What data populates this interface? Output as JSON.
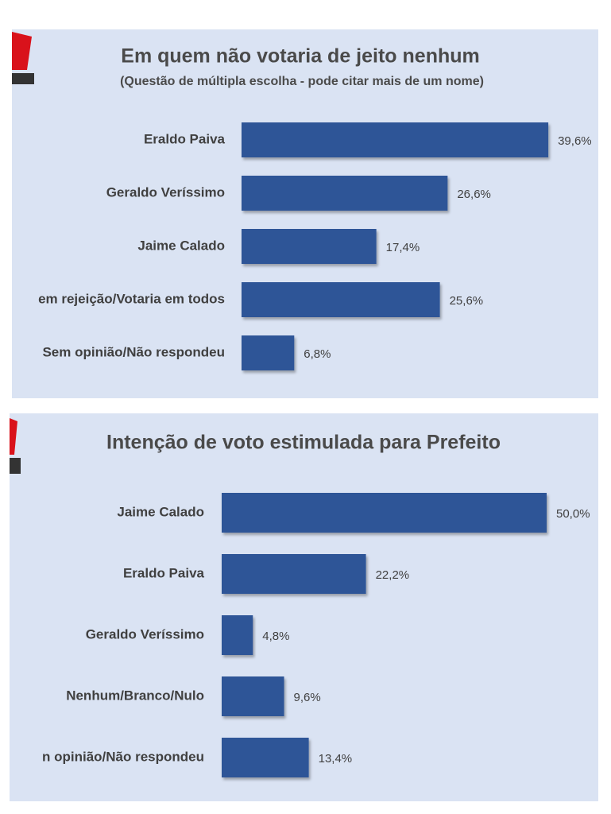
{
  "chart_data": [
    {
      "type": "bar",
      "orientation": "horizontal",
      "title": "Em quem não votaria de jeito nenhum",
      "subtitle": "(Questão de múltipla escolha - pode citar mais de um nome)",
      "categories": [
        "Eraldo Paiva",
        "Geraldo Veríssimo",
        "Jaime Calado",
        "em rejeição/Votaria em todos",
        "Sem opinião/Não respondeu"
      ],
      "values": [
        39.6,
        26.6,
        17.4,
        25.6,
        6.8
      ],
      "value_labels": [
        "39,6%",
        "26,6%",
        "17,4%",
        "25,6%",
        "6,8%"
      ],
      "color": "#2f5597"
    },
    {
      "type": "bar",
      "orientation": "horizontal",
      "title": "Intenção de voto estimulada para Prefeito",
      "categories": [
        "Jaime Calado",
        "Eraldo Paiva",
        "Geraldo Veríssimo",
        "Nenhum/Branco/Nulo",
        "n opinião/Não respondeu"
      ],
      "values": [
        50.0,
        22.2,
        4.8,
        9.6,
        13.4
      ],
      "value_labels": [
        "50,0%",
        "22,2%",
        "4,8%",
        "9,6%",
        "13,4%"
      ],
      "color": "#2f5597"
    }
  ]
}
